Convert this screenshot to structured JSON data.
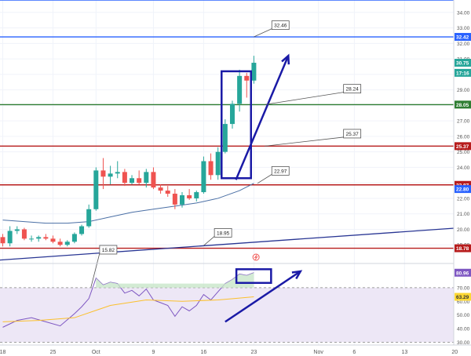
{
  "chart_data": [
    {
      "type": "candlestick",
      "title": "",
      "ylim": [
        18.0,
        34.8
      ],
      "price_ticks": [
        "34.00",
        "33.00",
        "32.00",
        "31.00",
        "30.00",
        "29.00",
        "28.00",
        "27.00",
        "26.00",
        "25.00",
        "24.00",
        "23.00",
        "22.00",
        "21.00",
        "20.00",
        "19.00"
      ],
      "x_ticks": [
        {
          "label": "18",
          "day": 0
        },
        {
          "label": "25",
          "day": 7
        },
        {
          "label": "Oct",
          "day": 13
        },
        {
          "label": "9",
          "day": 21
        },
        {
          "label": "16",
          "day": 28
        },
        {
          "label": "23",
          "day": 35
        },
        {
          "label": "Nov",
          "day": 44
        },
        {
          "label": "6",
          "day": 49
        },
        {
          "label": "13",
          "day": 56
        },
        {
          "label": "20",
          "day": 63
        }
      ],
      "candles": [
        {
          "day": 0,
          "o": 19.5,
          "h": 19.7,
          "l": 18.9,
          "c": 19.1
        },
        {
          "day": 1,
          "o": 19.1,
          "h": 20.2,
          "l": 18.9,
          "c": 19.9
        },
        {
          "day": 2,
          "o": 19.9,
          "h": 20.2,
          "l": 19.7,
          "c": 20.0
        },
        {
          "day": 3,
          "o": 20.0,
          "h": 20.1,
          "l": 19.3,
          "c": 19.4
        },
        {
          "day": 4,
          "o": 19.4,
          "h": 19.6,
          "l": 19.2,
          "c": 19.4
        },
        {
          "day": 5,
          "o": 19.4,
          "h": 19.6,
          "l": 19.2,
          "c": 19.5
        },
        {
          "day": 6,
          "o": 19.5,
          "h": 19.7,
          "l": 19.3,
          "c": 19.4
        },
        {
          "day": 7,
          "o": 19.4,
          "h": 19.6,
          "l": 19.1,
          "c": 19.2
        },
        {
          "day": 8,
          "o": 19.2,
          "h": 19.4,
          "l": 18.9,
          "c": 19.0
        },
        {
          "day": 9,
          "o": 19.0,
          "h": 19.3,
          "l": 18.9,
          "c": 19.2
        },
        {
          "day": 10,
          "o": 19.2,
          "h": 19.8,
          "l": 19.1,
          "c": 19.7
        },
        {
          "day": 11,
          "o": 19.7,
          "h": 20.3,
          "l": 19.6,
          "c": 20.2
        },
        {
          "day": 12,
          "o": 20.2,
          "h": 21.6,
          "l": 20.1,
          "c": 21.3
        },
        {
          "day": 13,
          "o": 21.3,
          "h": 24.0,
          "l": 21.2,
          "c": 23.8
        },
        {
          "day": 14,
          "o": 23.8,
          "h": 24.6,
          "l": 22.6,
          "c": 23.4
        },
        {
          "day": 15,
          "o": 23.4,
          "h": 24.1,
          "l": 22.9,
          "c": 23.6
        },
        {
          "day": 16,
          "o": 23.6,
          "h": 24.4,
          "l": 23.3,
          "c": 23.7
        },
        {
          "day": 17,
          "o": 23.7,
          "h": 23.9,
          "l": 22.8,
          "c": 23.0
        },
        {
          "day": 18,
          "o": 23.0,
          "h": 23.5,
          "l": 22.9,
          "c": 23.3
        },
        {
          "day": 19,
          "o": 23.3,
          "h": 23.8,
          "l": 22.9,
          "c": 23.0
        },
        {
          "day": 20,
          "o": 23.0,
          "h": 23.9,
          "l": 22.7,
          "c": 23.7
        },
        {
          "day": 21,
          "o": 23.7,
          "h": 24.0,
          "l": 22.6,
          "c": 22.7
        },
        {
          "day": 22,
          "o": 22.7,
          "h": 22.9,
          "l": 22.3,
          "c": 22.5
        },
        {
          "day": 23,
          "o": 22.5,
          "h": 22.8,
          "l": 22.1,
          "c": 22.3
        },
        {
          "day": 24,
          "o": 22.3,
          "h": 22.6,
          "l": 21.3,
          "c": 21.6
        },
        {
          "day": 25,
          "o": 21.6,
          "h": 22.4,
          "l": 21.4,
          "c": 22.2
        },
        {
          "day": 26,
          "o": 22.2,
          "h": 22.6,
          "l": 21.9,
          "c": 22.0
        },
        {
          "day": 27,
          "o": 22.0,
          "h": 22.5,
          "l": 21.8,
          "c": 22.4
        },
        {
          "day": 28,
          "o": 22.4,
          "h": 24.7,
          "l": 22.3,
          "c": 24.4
        },
        {
          "day": 29,
          "o": 24.4,
          "h": 24.9,
          "l": 23.2,
          "c": 23.5
        },
        {
          "day": 30,
          "o": 23.5,
          "h": 25.3,
          "l": 23.2,
          "c": 25.0
        },
        {
          "day": 31,
          "o": 25.0,
          "h": 27.1,
          "l": 24.9,
          "c": 26.8
        },
        {
          "day": 32,
          "o": 26.8,
          "h": 28.3,
          "l": 26.5,
          "c": 28.1
        },
        {
          "day": 33,
          "o": 28.1,
          "h": 30.3,
          "l": 27.6,
          "c": 29.9
        },
        {
          "day": 34,
          "o": 29.9,
          "h": 30.1,
          "l": 28.5,
          "c": 29.6
        },
        {
          "day": 35,
          "o": 29.6,
          "h": 31.2,
          "l": 29.4,
          "c": 30.75
        }
      ],
      "ma_line": [
        {
          "day": 0,
          "v": 20.6
        },
        {
          "day": 3,
          "v": 20.5
        },
        {
          "day": 6,
          "v": 20.4
        },
        {
          "day": 9,
          "v": 20.4
        },
        {
          "day": 12,
          "v": 20.5
        },
        {
          "day": 15,
          "v": 20.8
        },
        {
          "day": 18,
          "v": 21.1
        },
        {
          "day": 21,
          "v": 21.3
        },
        {
          "day": 24,
          "v": 21.5
        },
        {
          "day": 27,
          "v": 21.7
        },
        {
          "day": 30,
          "v": 22.0
        },
        {
          "day": 33,
          "v": 22.5
        },
        {
          "day": 35,
          "v": 22.97
        }
      ],
      "trendline": [
        {
          "day": -1,
          "v": 18.0
        },
        {
          "day": 73,
          "v": 20.4
        }
      ],
      "horizontal_lines": [
        {
          "value": 34.8,
          "color": "#2962ff",
          "label": ""
        },
        {
          "value": 32.42,
          "color": "#2962ff",
          "label": "32.42"
        },
        {
          "value": 28.05,
          "color": "#2e7d32",
          "label": "28.05"
        },
        {
          "value": 25.37,
          "color": "#b71c1c",
          "label": "25.37"
        },
        {
          "value": 22.87,
          "color": "#b71c1c",
          "label": "22.87"
        },
        {
          "value": 18.78,
          "color": "#b71c1c",
          "label": "18.78"
        }
      ],
      "price_badges": [
        {
          "value": 30.75,
          "label": "30.75",
          "bg": "#26a69a"
        },
        {
          "value": 30.1,
          "label": "17:16",
          "bg": "#26a69a"
        },
        {
          "value": 22.6,
          "label": "22.80",
          "bg": "#2962ff"
        }
      ],
      "callouts": [
        {
          "day": 35,
          "value": 32.42,
          "label": "32.46",
          "tx": 37.5,
          "ty": 33.2
        },
        {
          "day": 36.5,
          "value": 28.05,
          "label": "28.24",
          "tx": 47.5,
          "ty": 29.1
        },
        {
          "day": 36.5,
          "value": 25.37,
          "label": "25.37",
          "tx": 47.5,
          "ty": 26.2
        },
        {
          "day": 35.5,
          "value": 22.97,
          "label": "22.97",
          "tx": 37.5,
          "ty": 23.8
        },
        {
          "day": 28,
          "value": 18.95,
          "label": "18.95",
          "tx": 29.5,
          "ty": 19.8
        },
        {
          "day": 12,
          "value": 15.73,
          "label": "15.82",
          "tx": 13.5,
          "ty": 15.82
        }
      ],
      "highlight_box": {
        "x0": 30.5,
        "x1": 34.6,
        "y0": 30.2,
        "y1": 23.3
      },
      "arrow": {
        "x0": 32.5,
        "y0": 23.2,
        "x1": 39.8,
        "y1": 31.2
      },
      "colors": {
        "up": "#26a69a",
        "down": "#ef5350",
        "ma": "#4a6fa5",
        "trend": "#283593",
        "annotation": "#1a1aa6"
      }
    },
    {
      "type": "line",
      "title": "",
      "ylim": [
        28.0,
        86.0
      ],
      "ticks": [
        "80.00",
        "70.00",
        "60.00",
        "50.00",
        "40.00",
        "30.00"
      ],
      "rsi": [
        {
          "day": 0,
          "v": 41
        },
        {
          "day": 2,
          "v": 46
        },
        {
          "day": 4,
          "v": 48
        },
        {
          "day": 6,
          "v": 45
        },
        {
          "day": 8,
          "v": 42
        },
        {
          "day": 10,
          "v": 51
        },
        {
          "day": 11,
          "v": 56
        },
        {
          "day": 12,
          "v": 62
        },
        {
          "day": 13,
          "v": 77
        },
        {
          "day": 14,
          "v": 72
        },
        {
          "day": 15,
          "v": 74
        },
        {
          "day": 16,
          "v": 73
        },
        {
          "day": 17,
          "v": 66
        },
        {
          "day": 18,
          "v": 68
        },
        {
          "day": 19,
          "v": 64
        },
        {
          "day": 20,
          "v": 69
        },
        {
          "day": 21,
          "v": 61
        },
        {
          "day": 22,
          "v": 59
        },
        {
          "day": 23,
          "v": 57
        },
        {
          "day": 24,
          "v": 49
        },
        {
          "day": 25,
          "v": 56
        },
        {
          "day": 26,
          "v": 53
        },
        {
          "day": 27,
          "v": 57
        },
        {
          "day": 28,
          "v": 65
        },
        {
          "day": 29,
          "v": 61
        },
        {
          "day": 30,
          "v": 67
        },
        {
          "day": 31,
          "v": 73
        },
        {
          "day": 32,
          "v": 76
        },
        {
          "day": 33,
          "v": 80
        },
        {
          "day": 34,
          "v": 79
        },
        {
          "day": 35,
          "v": 80.96
        }
      ],
      "rsi_ma": [
        {
          "day": 0,
          "v": 45
        },
        {
          "day": 5,
          "v": 46
        },
        {
          "day": 10,
          "v": 48
        },
        {
          "day": 15,
          "v": 57
        },
        {
          "day": 20,
          "v": 61
        },
        {
          "day": 25,
          "v": 60
        },
        {
          "day": 30,
          "v": 61
        },
        {
          "day": 35,
          "v": 63.29
        }
      ],
      "bands": [
        70,
        30
      ],
      "badges": [
        {
          "value": 80.96,
          "label": "80.96",
          "bg": "#7e57c2"
        },
        {
          "value": 63.29,
          "label": "63.29",
          "bg": "#fdd835"
        }
      ],
      "highlight_box": {
        "x0": 33,
        "x1": 37.4,
        "y0": 83.5,
        "y1": 73.5
      },
      "arrow": {
        "x0": 31,
        "y0": 45,
        "x1": 41.5,
        "y1": 82
      },
      "colors": {
        "rsi": "#7e57c2",
        "rsi_ma": "#fbc02d",
        "band_fill": "#ede7f6",
        "annotation": "#1a1aa6"
      }
    }
  ]
}
